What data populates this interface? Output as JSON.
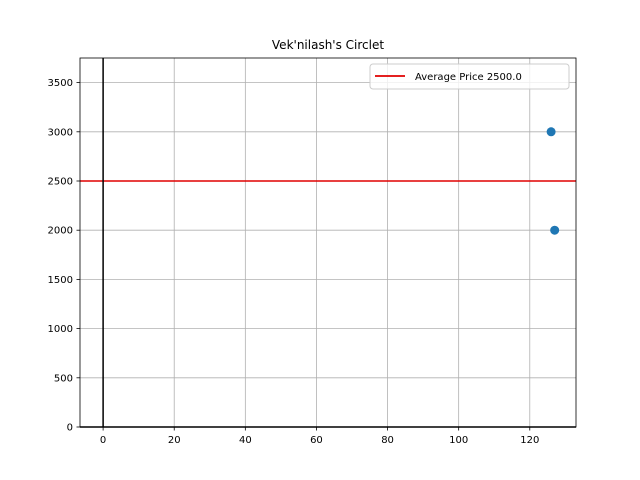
{
  "chart_data": {
    "type": "scatter",
    "title": "Vek'nilash's Circlet",
    "xlabel": "",
    "ylabel": "",
    "xlim": [
      -6.5,
      133
    ],
    "ylim": [
      0,
      3750
    ],
    "xticks": [
      0,
      20,
      40,
      60,
      80,
      100,
      120
    ],
    "yticks": [
      0,
      500,
      1000,
      1500,
      2000,
      2500,
      3000,
      3500
    ],
    "grid": true,
    "points": [
      {
        "x": 126,
        "y": 3000
      },
      {
        "x": 127,
        "y": 2000
      }
    ],
    "point_color": "#1f77b4",
    "reference_lines": [
      {
        "orientation": "horizontal",
        "value": 2500,
        "color": "#e00000",
        "label": "Average Price 2500.0"
      },
      {
        "orientation": "vertical",
        "value": 0,
        "color": "#000000"
      },
      {
        "orientation": "horizontal",
        "value": 0,
        "color": "#000000"
      }
    ],
    "legend": {
      "position": "top-right",
      "entries": [
        {
          "label": "Average Price 2500.0",
          "color": "#e00000"
        }
      ]
    }
  }
}
